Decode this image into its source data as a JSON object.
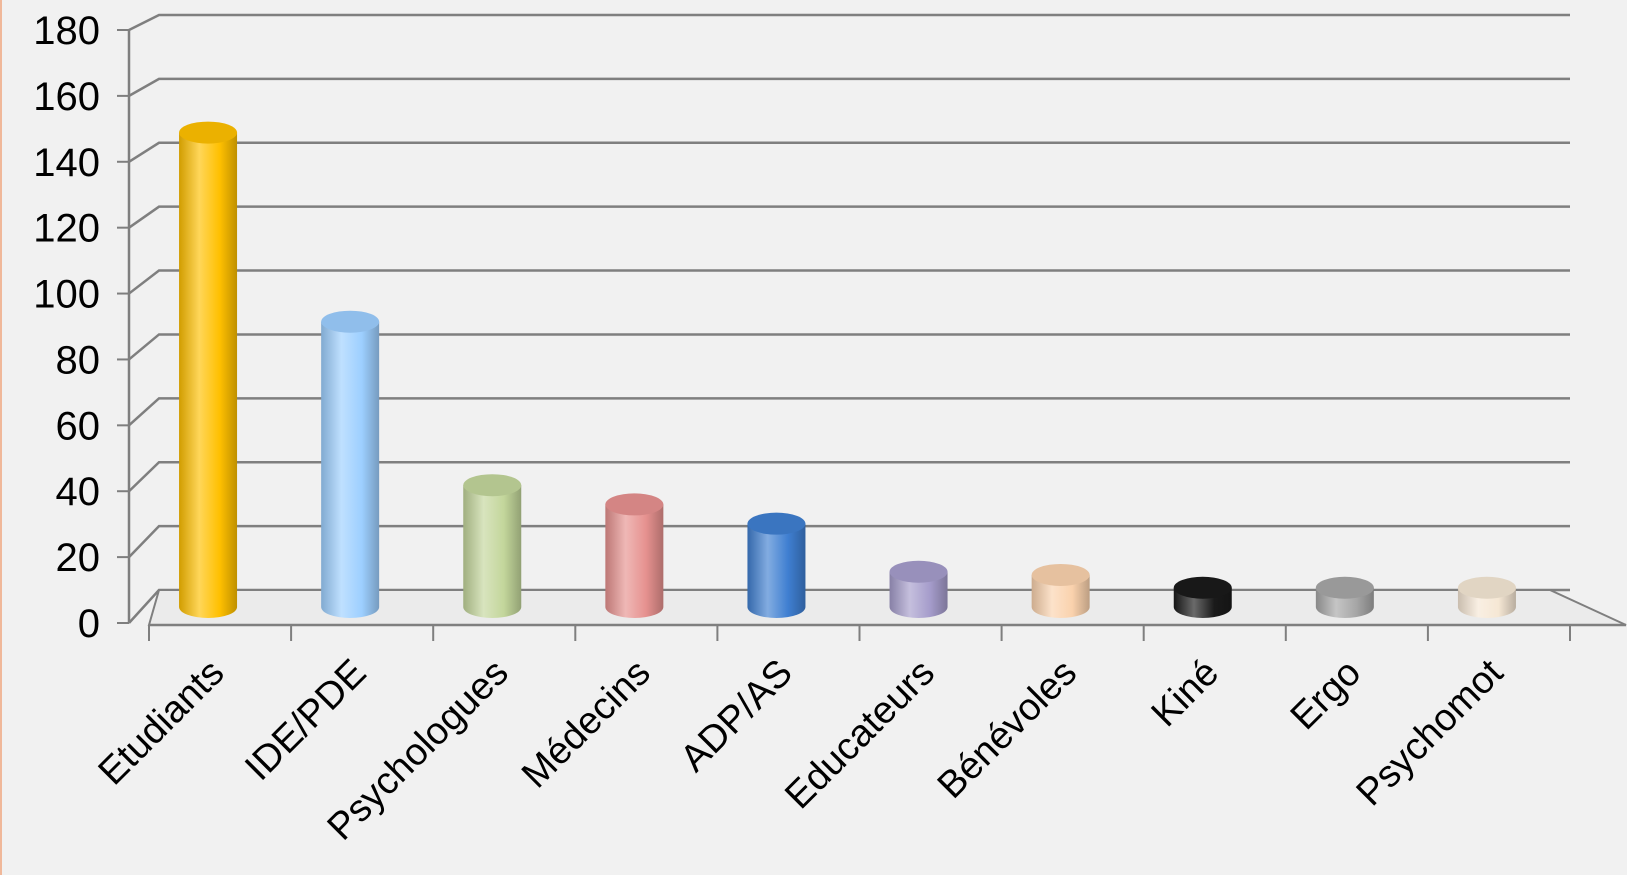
{
  "chart_data": {
    "type": "bar",
    "title": "",
    "xlabel": "",
    "ylabel": "",
    "ylim": [
      0,
      180
    ],
    "yticks": [
      0,
      20,
      40,
      60,
      80,
      100,
      120,
      140,
      160,
      180
    ],
    "grid": true,
    "style": "3d-cylinder",
    "categories": [
      "Etudiants",
      "IDE/PDE",
      "Psychologues",
      "Médecins",
      "ADP/AS",
      "Educateurs",
      "Bénévoles",
      "Kiné",
      "Ergo",
      "Psychomot"
    ],
    "values": [
      148,
      89,
      38,
      32,
      26,
      11,
      10,
      6,
      6,
      6
    ],
    "colors": [
      "#ffc000",
      "#9dcfff",
      "#c3d69b",
      "#e6918f",
      "#3f7fd1",
      "#a59ccb",
      "#fad2ad",
      "#1a1a1a",
      "#a6a6a6",
      "#f5e7d4"
    ]
  }
}
